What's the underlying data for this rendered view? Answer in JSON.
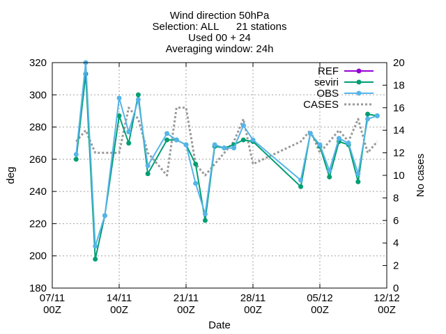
{
  "chart_data": {
    "type": "line",
    "title_lines": [
      "Wind direction 50hPa",
      "Selection: ALL      21 stations",
      "Used 00 + 24",
      "Averaging window: 24h"
    ],
    "xlabel": "Date",
    "ylabel": "deg",
    "y2label": "No cases",
    "x_range_days": [
      0,
      35
    ],
    "ylim": [
      180,
      320
    ],
    "y2lim": [
      0,
      20
    ],
    "x_ticks": [
      {
        "day": 0,
        "line1": "07/11",
        "line2": "00Z"
      },
      {
        "day": 7,
        "line1": "14/11",
        "line2": "00Z"
      },
      {
        "day": 14,
        "line1": "21/11",
        "line2": "00Z"
      },
      {
        "day": 21,
        "line1": "28/11",
        "line2": "00Z"
      },
      {
        "day": 28,
        "line1": "05/12",
        "line2": "00Z"
      },
      {
        "day": 35,
        "line1": "12/12",
        "line2": "00Z"
      }
    ],
    "y_ticks": [
      180,
      200,
      220,
      240,
      260,
      280,
      300,
      320
    ],
    "y2_ticks": [
      0,
      2,
      4,
      6,
      8,
      10,
      12,
      14,
      16,
      18,
      20
    ],
    "grid": true,
    "legend_position": "top-right",
    "series": [
      {
        "name": "REF",
        "color": "#9400d3",
        "marker": "circle",
        "axis": "y",
        "points": []
      },
      {
        "name": "seviri",
        "color": "#009e73",
        "marker": "circle",
        "axis": "y",
        "points": [
          [
            2.5,
            260
          ],
          [
            3.5,
            313
          ],
          [
            4.5,
            198
          ],
          [
            5.5,
            225
          ],
          [
            7,
            287
          ],
          [
            8,
            270
          ],
          [
            9,
            300
          ],
          [
            10,
            251
          ],
          [
            12,
            272
          ],
          [
            13,
            272
          ],
          [
            14,
            269
          ],
          [
            15,
            257
          ],
          [
            16,
            222
          ],
          [
            17,
            268
          ],
          [
            18,
            267
          ],
          [
            19,
            269
          ],
          [
            20,
            272
          ],
          [
            21,
            271
          ],
          [
            26,
            243
          ],
          [
            27,
            276
          ],
          [
            28,
            268
          ],
          [
            29,
            249
          ],
          [
            30,
            271
          ],
          [
            31,
            269
          ],
          [
            32,
            246
          ],
          [
            33,
            288
          ],
          [
            34,
            287
          ]
        ]
      },
      {
        "name": "OBS",
        "color": "#56b4e9",
        "marker": "circle",
        "axis": "y",
        "points": [
          [
            2.5,
            263
          ],
          [
            3.5,
            320
          ],
          [
            4.5,
            206
          ],
          [
            5.5,
            225
          ],
          [
            7,
            298
          ],
          [
            8,
            277
          ],
          [
            9,
            297
          ],
          [
            10,
            256
          ],
          [
            12,
            276
          ],
          [
            13,
            272
          ],
          [
            14,
            269
          ],
          [
            15,
            245
          ],
          [
            16,
            226
          ],
          [
            17,
            269
          ],
          [
            18,
            267
          ],
          [
            19,
            267
          ],
          [
            20,
            281
          ],
          [
            21,
            272
          ],
          [
            26,
            247
          ],
          [
            27,
            276
          ],
          [
            28,
            269
          ],
          [
            29,
            253
          ],
          [
            30,
            273
          ],
          [
            31,
            270
          ],
          [
            32,
            251
          ],
          [
            33,
            285
          ],
          [
            34,
            287
          ]
        ]
      },
      {
        "name": "CASES",
        "color": "#999999",
        "marker": "none",
        "dashed": true,
        "axis": "y2",
        "points": [
          [
            2.5,
            13
          ],
          [
            3.5,
            14
          ],
          [
            4.5,
            12
          ],
          [
            5.5,
            12
          ],
          [
            7,
            12
          ],
          [
            8,
            16
          ],
          [
            9,
            15
          ],
          [
            10,
            12
          ],
          [
            12,
            10
          ],
          [
            13,
            16
          ],
          [
            14,
            16
          ],
          [
            15,
            11
          ],
          [
            16,
            10
          ],
          [
            17,
            11
          ],
          [
            18,
            12
          ],
          [
            19,
            13
          ],
          [
            20,
            15
          ],
          [
            21,
            11
          ],
          [
            26,
            13
          ],
          [
            27,
            14
          ],
          [
            28,
            12
          ],
          [
            29,
            13
          ],
          [
            30,
            14
          ],
          [
            31,
            13
          ],
          [
            32,
            15
          ],
          [
            33,
            12
          ],
          [
            34,
            13
          ]
        ]
      }
    ]
  }
}
